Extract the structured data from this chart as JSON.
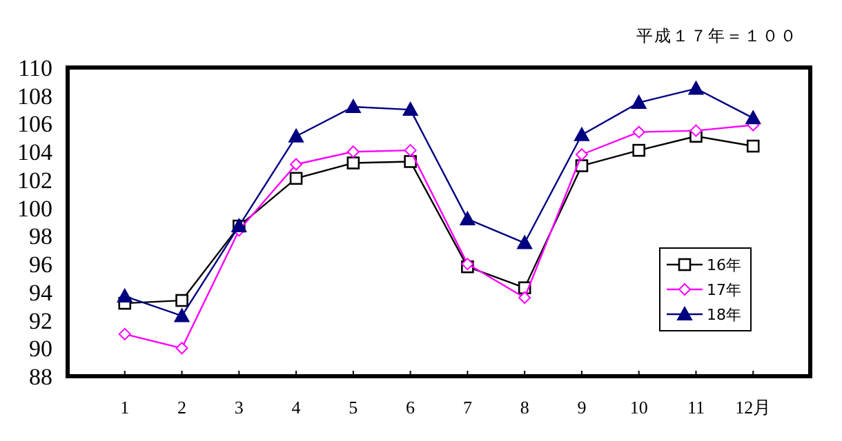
{
  "chart_data": {
    "type": "line",
    "annotations": [
      "平成１７年＝１００"
    ],
    "categories": [
      "1",
      "2",
      "3",
      "4",
      "5",
      "6",
      "7",
      "8",
      "9",
      "10",
      "11",
      "12月"
    ],
    "series": [
      {
        "name": "16年",
        "color": "#000000",
        "marker": "square",
        "values": [
          93.2,
          93.4,
          98.7,
          102.1,
          103.2,
          103.3,
          95.8,
          94.3,
          103.0,
          104.1,
          105.1,
          104.4
        ]
      },
      {
        "name": "17年",
        "color": "#ff00ff",
        "marker": "diamond",
        "values": [
          91.0,
          90.0,
          98.4,
          103.1,
          104.0,
          104.1,
          96.0,
          93.6,
          103.8,
          105.4,
          105.5,
          105.9
        ]
      },
      {
        "name": "18年",
        "color": "#000080",
        "marker": "triangle",
        "values": [
          93.7,
          92.3,
          98.7,
          105.1,
          107.2,
          107.0,
          99.2,
          97.5,
          105.2,
          107.5,
          108.5,
          106.4
        ]
      }
    ],
    "ylim": [
      88,
      110
    ],
    "yticks": [
      88,
      90,
      92,
      94,
      96,
      98,
      100,
      102,
      104,
      106,
      108,
      110
    ],
    "grid": false,
    "legend": "right"
  }
}
